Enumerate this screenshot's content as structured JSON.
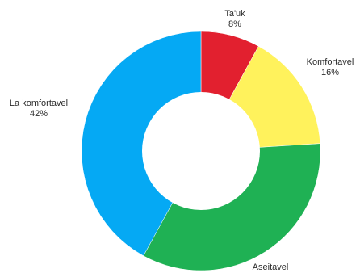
{
  "chart_data": {
    "type": "pie",
    "variant": "donut",
    "slices": [
      {
        "label": "Ta'uk",
        "value": 8,
        "value_label": "8%",
        "color": "#e2202f"
      },
      {
        "label": "Komfortavel",
        "value": 16,
        "value_label": "16%",
        "color": "#fff25c"
      },
      {
        "label": "Aseitavel",
        "value": 34,
        "value_label": "",
        "color": "#1fb154"
      },
      {
        "label": "La komfortavel",
        "value": 42,
        "value_label": "42%",
        "color": "#05a9f4"
      }
    ],
    "start_angle": "12 o'clock",
    "direction": "clockwise",
    "legend": "none",
    "grid": false
  }
}
